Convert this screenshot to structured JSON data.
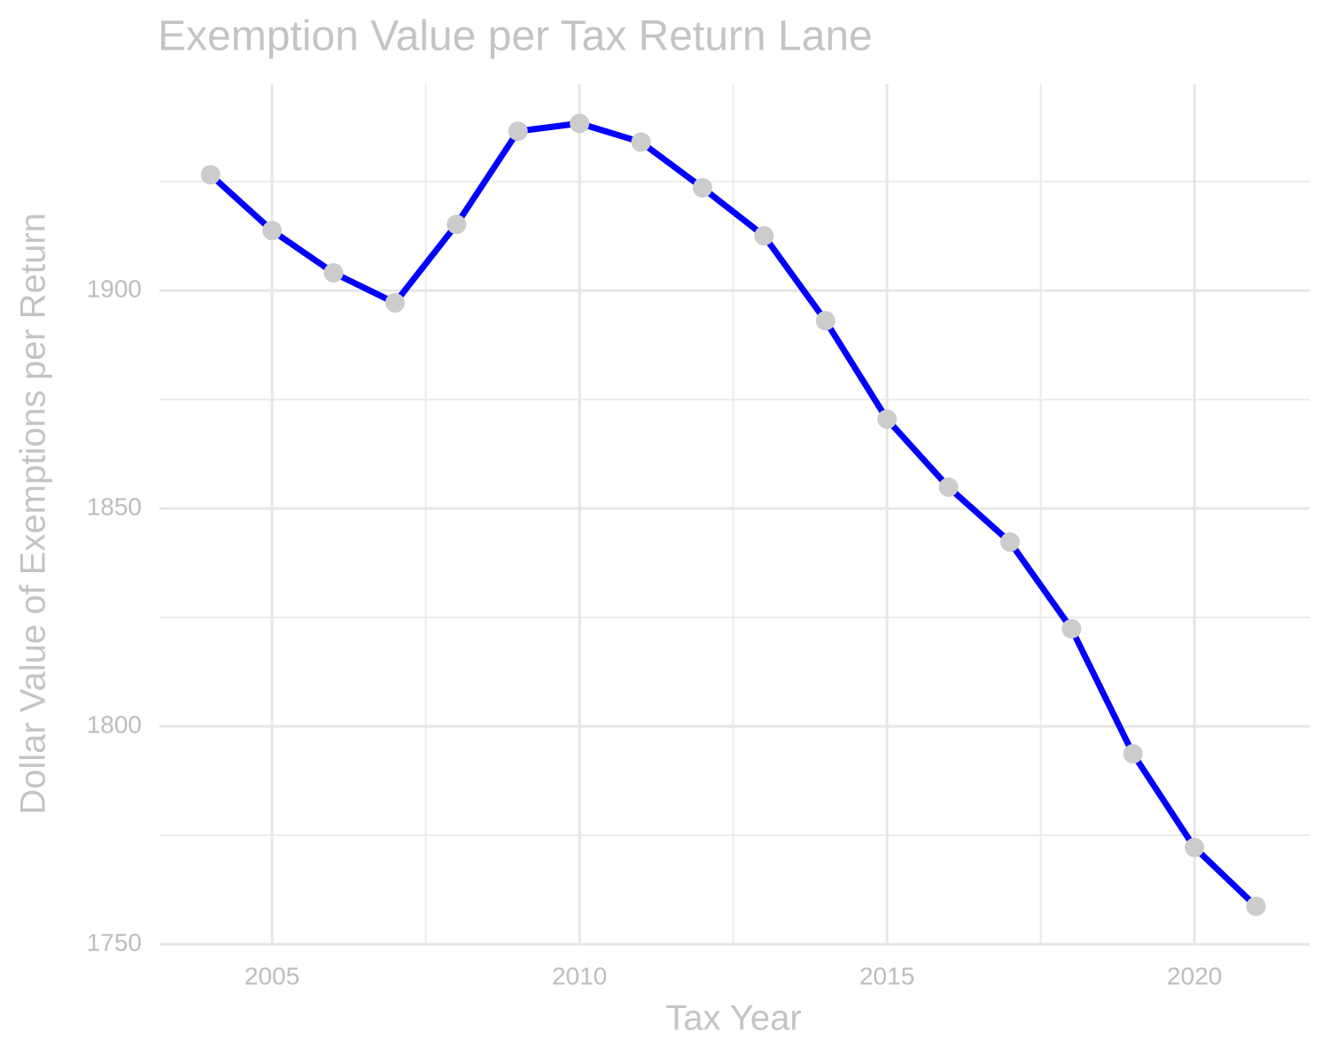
{
  "chart_data": {
    "type": "line",
    "title": "Exemption Value per Tax Return Lane",
    "x_label": "Tax Year",
    "y_label": "Dollar Value of Exemptions per Return",
    "x": [
      2004,
      2005,
      2006,
      2007,
      2008,
      2009,
      2010,
      2011,
      2012,
      2013,
      2014,
      2015,
      2016,
      2017,
      2018,
      2019,
      2020,
      2021
    ],
    "series": [
      {
        "name": "Exemption Value",
        "color": "#0000ff",
        "marker_color": "#cccccc",
        "values": [
          1926.6,
          1913.8,
          1904.1,
          1897.2,
          1915.2,
          1936.6,
          1938.4,
          1934.1,
          1923.6,
          1912.6,
          1893.1,
          1870.5,
          1854.9,
          1842.3,
          1822.4,
          1793.7,
          1772.2,
          1758.7
        ]
      }
    ],
    "xlim": [
      2003.17,
      2021.87
    ],
    "xticks": [
      2005,
      2010,
      2015,
      2020
    ],
    "ylim": [
      1750,
      1947.4
    ],
    "yticks": [
      1750,
      1800,
      1850,
      1900
    ],
    "grid": true
  }
}
